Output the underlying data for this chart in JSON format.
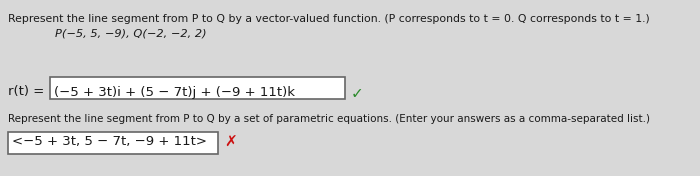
{
  "bg_color": "#d8d8d8",
  "top_bar_color": "#3a5a8a",
  "line1": "Represent the line segment from P to Q by a vector-valued function. (P corresponds to t = 0. Q corresponds to t = 1.)",
  "line2": "P(−5, 5, −9), Q(−2, −2, 2)",
  "rt_label": "r(t) =",
  "rt_box_content": "(−5 + 3t)i + (5 − 7t)j + (−9 + 11t)k",
  "check_color": "#2a8a2a",
  "line4": "Represent the line segment from P to Q by a set of parametric equations. (Enter your answers as a comma-separated list.)",
  "box2_content": "<−5 + 3t, 5 − 7t, −9 + 11t>",
  "x_color": "#cc1111",
  "text_color": "#1a1a1a",
  "box_edge_color": "#666666",
  "font_size_line1": 7.8,
  "font_size_line2": 8.2,
  "font_size_rt": 9.5,
  "font_size_box": 9.5,
  "font_size_line4": 7.5,
  "font_size_box2": 9.5
}
